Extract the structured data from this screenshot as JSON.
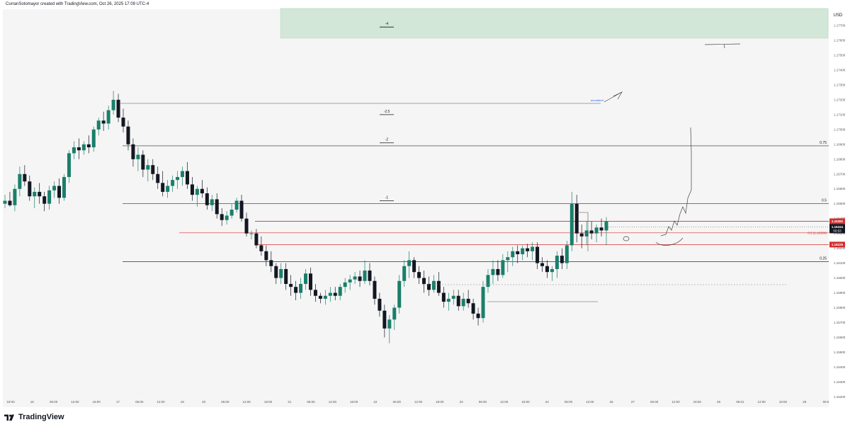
{
  "header": {
    "caption": "CurranSotomayor created with TradingView.com, Oct 26, 2025 17:09 UTC-4"
  },
  "footer": {
    "brand": "TradingView",
    "logo_icon": "tradingview-logo-icon"
  },
  "colors": {
    "bull": "#1a7f6b",
    "bear": "#131722",
    "zone": "#d3e7d8",
    "red_line": "#d32f2f",
    "level_line": "#2a2e39",
    "background": "#f5f5f5"
  },
  "chart_data": {
    "type": "candlestick",
    "currency_label": "USD",
    "ylim": [
      1.1513,
      1.1781
    ],
    "y_ticks": [
      "1.17700",
      "1.17600",
      "1.17500",
      "1.17400",
      "1.17300",
      "1.17200",
      "1.17100",
      "1.17000",
      "1.16900",
      "1.16800",
      "1.16700",
      "1.16600",
      "1.16500",
      "1.16400",
      "1.16300",
      "1.16200",
      "1.16100",
      "1.16000",
      "1.15900",
      "1.15800",
      "1.15700",
      "1.15600",
      "1.15500",
      "1.15400",
      "1.15300",
      "1.15200"
    ],
    "x_ticks": [
      "18:00",
      "16",
      "06:00",
      "12:00",
      "18:00",
      "17",
      "06:00",
      "12:00",
      "19",
      "20",
      "06:00",
      "12:00",
      "18:00",
      "21",
      "06:00",
      "12:00",
      "18:00",
      "22",
      "06:00",
      "12:00",
      "18:00",
      "23",
      "06:00",
      "12:00",
      "18:00",
      "24",
      "06:00",
      "12:00",
      "26",
      "27",
      "06:00",
      "12:00",
      "18:00",
      "28",
      "06:01",
      "12:00",
      "18:00",
      "29",
      "06:0"
    ],
    "candles": [
      [
        1.165,
        1.1656,
        1.1647,
        1.1652
      ],
      [
        1.1652,
        1.1658,
        1.1648,
        1.1649
      ],
      [
        1.1649,
        1.1663,
        1.1645,
        1.166
      ],
      [
        1.166,
        1.1675,
        1.1655,
        1.167
      ],
      [
        1.167,
        1.1676,
        1.1662,
        1.1665
      ],
      [
        1.1665,
        1.1669,
        1.1652,
        1.1655
      ],
      [
        1.1655,
        1.1661,
        1.1647,
        1.1658
      ],
      [
        1.1658,
        1.1664,
        1.165,
        1.1655
      ],
      [
        1.1655,
        1.1658,
        1.1645,
        1.165
      ],
      [
        1.165,
        1.1662,
        1.1646,
        1.1659
      ],
      [
        1.1659,
        1.1665,
        1.1654,
        1.1662
      ],
      [
        1.1662,
        1.1667,
        1.165,
        1.1654
      ],
      [
        1.1654,
        1.167,
        1.1652,
        1.1668
      ],
      [
        1.1668,
        1.1686,
        1.1664,
        1.1684
      ],
      [
        1.1684,
        1.1692,
        1.168,
        1.1688
      ],
      [
        1.1688,
        1.1694,
        1.168,
        1.1686
      ],
      [
        1.1686,
        1.1692,
        1.1683,
        1.169
      ],
      [
        1.169,
        1.1696,
        1.1684,
        1.1688
      ],
      [
        1.1688,
        1.1702,
        1.1685,
        1.17
      ],
      [
        1.17,
        1.1708,
        1.1696,
        1.1706
      ],
      [
        1.1706,
        1.1712,
        1.1699,
        1.1704
      ],
      [
        1.1704,
        1.1716,
        1.17,
        1.1713
      ],
      [
        1.1713,
        1.1726,
        1.171,
        1.172
      ],
      [
        1.172,
        1.1724,
        1.1705,
        1.1708
      ],
      [
        1.1708,
        1.1714,
        1.1698,
        1.1702
      ],
      [
        1.1702,
        1.1706,
        1.1686,
        1.169
      ],
      [
        1.169,
        1.1694,
        1.1675,
        1.168
      ],
      [
        1.168,
        1.1688,
        1.1672,
        1.1683
      ],
      [
        1.1683,
        1.1686,
        1.1668,
        1.1673
      ],
      [
        1.1673,
        1.168,
        1.1665,
        1.1676
      ],
      [
        1.1676,
        1.168,
        1.1666,
        1.167
      ],
      [
        1.167,
        1.1675,
        1.166,
        1.1664
      ],
      [
        1.1664,
        1.1672,
        1.1655,
        1.1658
      ],
      [
        1.1658,
        1.1666,
        1.1654,
        1.1662
      ],
      [
        1.1662,
        1.1669,
        1.1658,
        1.1666
      ],
      [
        1.1666,
        1.1672,
        1.166,
        1.1668
      ],
      [
        1.1668,
        1.1675,
        1.1662,
        1.1672
      ],
      [
        1.1672,
        1.1678,
        1.166,
        1.1663
      ],
      [
        1.1663,
        1.1668,
        1.1652,
        1.1656
      ],
      [
        1.1656,
        1.1662,
        1.1648,
        1.166
      ],
      [
        1.166,
        1.1666,
        1.1654,
        1.1657
      ],
      [
        1.1657,
        1.1661,
        1.1646,
        1.1649
      ],
      [
        1.1649,
        1.1656,
        1.1645,
        1.1653
      ],
      [
        1.1653,
        1.1657,
        1.164,
        1.1643
      ],
      [
        1.1643,
        1.1647,
        1.1635,
        1.1639
      ],
      [
        1.1639,
        1.1645,
        1.1636,
        1.1642
      ],
      [
        1.1642,
        1.165,
        1.164,
        1.1646
      ],
      [
        1.1646,
        1.1654,
        1.1644,
        1.1652
      ],
      [
        1.1652,
        1.1656,
        1.1638,
        1.164
      ],
      [
        1.164,
        1.1644,
        1.1628,
        1.163
      ],
      [
        1.163,
        1.1632,
        1.1626,
        1.163
      ],
      [
        1.163,
        1.1633,
        1.162,
        1.1622
      ],
      [
        1.1622,
        1.1628,
        1.1615,
        1.1618
      ],
      [
        1.1618,
        1.1622,
        1.1608,
        1.1612
      ],
      [
        1.1612,
        1.1618,
        1.1604,
        1.1608
      ],
      [
        1.1608,
        1.161,
        1.1596,
        1.16
      ],
      [
        1.16,
        1.161,
        1.1596,
        1.1606
      ],
      [
        1.1606,
        1.161,
        1.1592,
        1.1596
      ],
      [
        1.1596,
        1.1602,
        1.1588,
        1.1594
      ],
      [
        1.1594,
        1.1598,
        1.1585,
        1.159
      ],
      [
        1.159,
        1.16,
        1.1586,
        1.1596
      ],
      [
        1.1596,
        1.1606,
        1.1592,
        1.1603
      ],
      [
        1.1603,
        1.1607,
        1.1588,
        1.1592
      ],
      [
        1.1592,
        1.1596,
        1.1584,
        1.1588
      ],
      [
        1.1588,
        1.159,
        1.1583,
        1.1586
      ],
      [
        1.1586,
        1.1592,
        1.1582,
        1.1588
      ],
      [
        1.1588,
        1.1594,
        1.1584,
        1.159
      ],
      [
        1.159,
        1.1594,
        1.1585,
        1.1588
      ],
      [
        1.1588,
        1.1596,
        1.1585,
        1.1594
      ],
      [
        1.1594,
        1.16,
        1.159,
        1.1597
      ],
      [
        1.1597,
        1.1602,
        1.1592,
        1.1599
      ],
      [
        1.1599,
        1.1604,
        1.1596,
        1.1601
      ],
      [
        1.1601,
        1.1605,
        1.1594,
        1.1598
      ],
      [
        1.1598,
        1.1612,
        1.1596,
        1.1605
      ],
      [
        1.1605,
        1.161,
        1.1595,
        1.1598
      ],
      [
        1.1598,
        1.1601,
        1.1582,
        1.1586
      ],
      [
        1.1586,
        1.159,
        1.1574,
        1.1578
      ],
      [
        1.1578,
        1.1582,
        1.156,
        1.1566
      ],
      [
        1.1566,
        1.1575,
        1.1556,
        1.1572
      ],
      [
        1.1572,
        1.1582,
        1.1565,
        1.158
      ],
      [
        1.158,
        1.1602,
        1.1576,
        1.1598
      ],
      [
        1.1598,
        1.1612,
        1.1594,
        1.1608
      ],
      [
        1.1608,
        1.1618,
        1.16,
        1.1612
      ],
      [
        1.1612,
        1.1614,
        1.16,
        1.1604
      ],
      [
        1.1604,
        1.1608,
        1.1596,
        1.16
      ],
      [
        1.16,
        1.1605,
        1.159,
        1.1596
      ],
      [
        1.1596,
        1.1601,
        1.1588,
        1.1592
      ],
      [
        1.1592,
        1.1602,
        1.159,
        1.1598
      ],
      [
        1.1598,
        1.1604,
        1.1588,
        1.159
      ],
      [
        1.159,
        1.1594,
        1.158,
        1.1584
      ],
      [
        1.1584,
        1.159,
        1.1578,
        1.1586
      ],
      [
        1.1586,
        1.1592,
        1.1582,
        1.1588
      ],
      [
        1.1588,
        1.1592,
        1.1578,
        1.1581
      ],
      [
        1.1581,
        1.159,
        1.1578,
        1.1586
      ],
      [
        1.1586,
        1.1592,
        1.158,
        1.1583
      ],
      [
        1.1583,
        1.1586,
        1.1572,
        1.1576
      ],
      [
        1.1576,
        1.158,
        1.1568,
        1.1573
      ],
      [
        1.1573,
        1.1598,
        1.157,
        1.1594
      ],
      [
        1.1594,
        1.1606,
        1.159,
        1.1602
      ],
      [
        1.1602,
        1.1612,
        1.1596,
        1.1606
      ],
      [
        1.1606,
        1.1612,
        1.1598,
        1.1602
      ],
      [
        1.1602,
        1.1616,
        1.16,
        1.1612
      ],
      [
        1.1612,
        1.1618,
        1.1604,
        1.1614
      ],
      [
        1.1614,
        1.1621,
        1.1608,
        1.1618
      ],
      [
        1.1618,
        1.1622,
        1.161,
        1.1616
      ],
      [
        1.1616,
        1.1622,
        1.1612,
        1.162
      ],
      [
        1.162,
        1.1623,
        1.1614,
        1.1618
      ],
      [
        1.1618,
        1.1624,
        1.1612,
        1.1621
      ],
      [
        1.1621,
        1.1624,
        1.1606,
        1.161
      ],
      [
        1.161,
        1.1614,
        1.1604,
        1.1608
      ],
      [
        1.1608,
        1.1612,
        1.16,
        1.1604
      ],
      [
        1.1604,
        1.1608,
        1.1598,
        1.1606
      ],
      [
        1.1606,
        1.1618,
        1.16,
        1.1615
      ],
      [
        1.1615,
        1.162,
        1.1606,
        1.161
      ],
      [
        1.161,
        1.1625,
        1.1606,
        1.1622
      ],
      [
        1.1622,
        1.1658,
        1.1618,
        1.165
      ],
      [
        1.165,
        1.1656,
        1.1624,
        1.163
      ],
      [
        1.163,
        1.1636,
        1.162,
        1.1628
      ],
      [
        1.1628,
        1.1638,
        1.1622,
        1.1632
      ],
      [
        1.1632,
        1.1638,
        1.1626,
        1.163
      ],
      [
        1.163,
        1.1636,
        1.1624,
        1.1634
      ],
      [
        1.1634,
        1.164,
        1.1628,
        1.1632
      ],
      [
        1.1632,
        1.1641,
        1.1622,
        1.1638
      ]
    ],
    "levels": [
      {
        "label": "0.75",
        "y": 1.1689
      },
      {
        "label": "0.5",
        "y": 1.165
      },
      {
        "label": "0.25",
        "y": 1.1611
      }
    ],
    "red_lines": [
      {
        "price_label": "1.16382",
        "y": 1.16382
      },
      {
        "price_label": "1.16225",
        "y": 1.16225
      }
    ],
    "midline": {
      "label": "0.5 (1.16304)",
      "y": 1.16304
    },
    "current": {
      "price_label": "1.16344",
      "countdown": "50:53",
      "y": 1.16344
    },
    "projection_labels": [
      {
        "label": "-4",
        "y": 1.1769
      },
      {
        "label": "-2.5",
        "y": 1.171
      },
      {
        "label": "-2",
        "y": 1.1691
      },
      {
        "label": "-1",
        "y": 1.1652
      }
    ],
    "zone": {
      "from": 1.17615,
      "to": 1.17815
    },
    "small_text": "annotated"
  }
}
